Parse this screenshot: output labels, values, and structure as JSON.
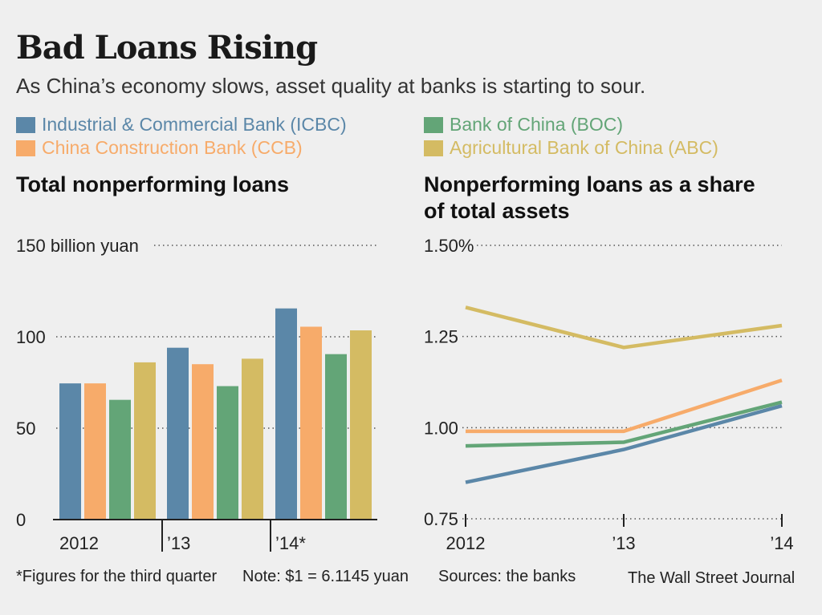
{
  "header": {
    "title": "Bad Loans Rising",
    "subtitle": "As China’s economy slows, asset quality at banks is starting to sour."
  },
  "legend": [
    {
      "name": "Industrial & Commercial Bank (ICBC)",
      "color": "#5b87a8"
    },
    {
      "name": "China Construction Bank (CCB)",
      "color": "#f7ab6a"
    },
    {
      "name": "Bank of China (BOC)",
      "color": "#63a577"
    },
    {
      "name": "Agricultural Bank of China (ABC)",
      "color": "#d4bb63"
    }
  ],
  "footer": {
    "note1": "*Figures for the third quarter",
    "note2": "Note: $1 = 6.1145 yuan",
    "sources": "Sources: the banks",
    "credit": "The Wall Street Journal"
  },
  "chart_data": [
    {
      "type": "bar",
      "title": "Total nonperforming loans",
      "categories": [
        "2012",
        "’13",
        "’14*"
      ],
      "ytick_labels": [
        "150 billion yuan",
        "100",
        "50",
        "0"
      ],
      "yticks": [
        150,
        100,
        50,
        0
      ],
      "ylim": [
        0,
        150
      ],
      "series": [
        {
          "name": "Industrial & Commercial Bank (ICBC)",
          "color": "#5b87a8",
          "values": [
            74.5,
            94,
            115.5
          ]
        },
        {
          "name": "China Construction Bank (CCB)",
          "color": "#f7ab6a",
          "values": [
            74.5,
            85,
            105.5
          ]
        },
        {
          "name": "Bank of China (BOC)",
          "color": "#63a577",
          "values": [
            65.5,
            73,
            90.5
          ]
        },
        {
          "name": "Agricultural Bank of China (ABC)",
          "color": "#d4bb63",
          "values": [
            86,
            88,
            103.5
          ]
        }
      ]
    },
    {
      "type": "line",
      "title": "Nonperforming loans as a share of total assets",
      "x": [
        "2012",
        "’13",
        "’14"
      ],
      "ytick_labels": [
        "1.50%",
        "1.25",
        "1.00",
        "0.75"
      ],
      "yticks": [
        1.5,
        1.25,
        1.0,
        0.75
      ],
      "ylim": [
        0.75,
        1.5
      ],
      "series": [
        {
          "name": "Industrial & Commercial Bank (ICBC)",
          "color": "#5b87a8",
          "values": [
            0.85,
            0.94,
            1.06
          ]
        },
        {
          "name": "China Construction Bank (CCB)",
          "color": "#f7ab6a",
          "values": [
            0.99,
            0.99,
            1.13
          ]
        },
        {
          "name": "Bank of China (BOC)",
          "color": "#63a577",
          "values": [
            0.95,
            0.96,
            1.07
          ]
        },
        {
          "name": "Agricultural Bank of China (ABC)",
          "color": "#d4bb63",
          "values": [
            1.33,
            1.22,
            1.28
          ]
        }
      ]
    }
  ]
}
